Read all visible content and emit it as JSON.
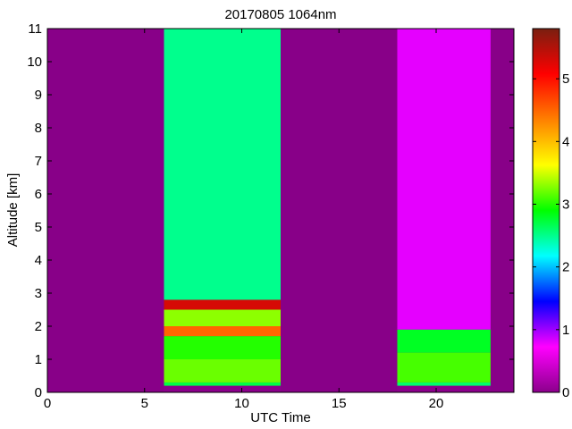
{
  "chart_data": {
    "type": "heatmap",
    "title": "20170805 1064nm",
    "xlabel": "UTC Time",
    "ylabel": "Altitude [km]",
    "xlim": [
      0,
      24
    ],
    "ylim": [
      0,
      11
    ],
    "x_ticks": [
      0,
      5,
      10,
      15,
      20
    ],
    "y_ticks": [
      0,
      1,
      2,
      3,
      4,
      5,
      6,
      7,
      8,
      9,
      10,
      11
    ],
    "colorbar": {
      "range": [
        0,
        5.8
      ],
      "ticks": [
        0,
        1,
        2,
        3,
        4,
        5
      ],
      "colormap": [
        "#8b008b",
        "#ff00ff",
        "#0000ff",
        "#00ffff",
        "#00ff00",
        "#ffff00",
        "#ff8000",
        "#ff0000",
        "#7a1f10"
      ]
    },
    "background_value": 0,
    "background_color": "#880088",
    "measurement_periods": [
      {
        "start_utc": 6.0,
        "end_utc": 12.0,
        "layers": [
          {
            "from_km": 0.0,
            "to_km": 0.2,
            "value": 0
          },
          {
            "from_km": 0.2,
            "to_km": 0.3,
            "value": 2.7
          },
          {
            "from_km": 0.3,
            "to_km": 1.0,
            "value": 3.2
          },
          {
            "from_km": 1.0,
            "to_km": 1.7,
            "value": 3.0
          },
          {
            "from_km": 1.7,
            "to_km": 2.0,
            "value": 4.5
          },
          {
            "from_km": 2.0,
            "to_km": 2.5,
            "value": 3.3
          },
          {
            "from_km": 2.5,
            "to_km": 2.8,
            "value": 5.3
          },
          {
            "from_km": 2.8,
            "to_km": 11.0,
            "value": 2.5
          }
        ]
      },
      {
        "start_utc": 18.0,
        "end_utc": 22.8,
        "layers": [
          {
            "from_km": 0.0,
            "to_km": 0.2,
            "value": 0
          },
          {
            "from_km": 0.2,
            "to_km": 0.3,
            "value": 2.6
          },
          {
            "from_km": 0.3,
            "to_km": 1.2,
            "value": 3.1
          },
          {
            "from_km": 1.2,
            "to_km": 1.9,
            "value": 2.8
          },
          {
            "from_km": 1.9,
            "to_km": 11.0,
            "value": 0.8
          }
        ]
      }
    ],
    "grid": false,
    "legend": "colorbar-right"
  }
}
